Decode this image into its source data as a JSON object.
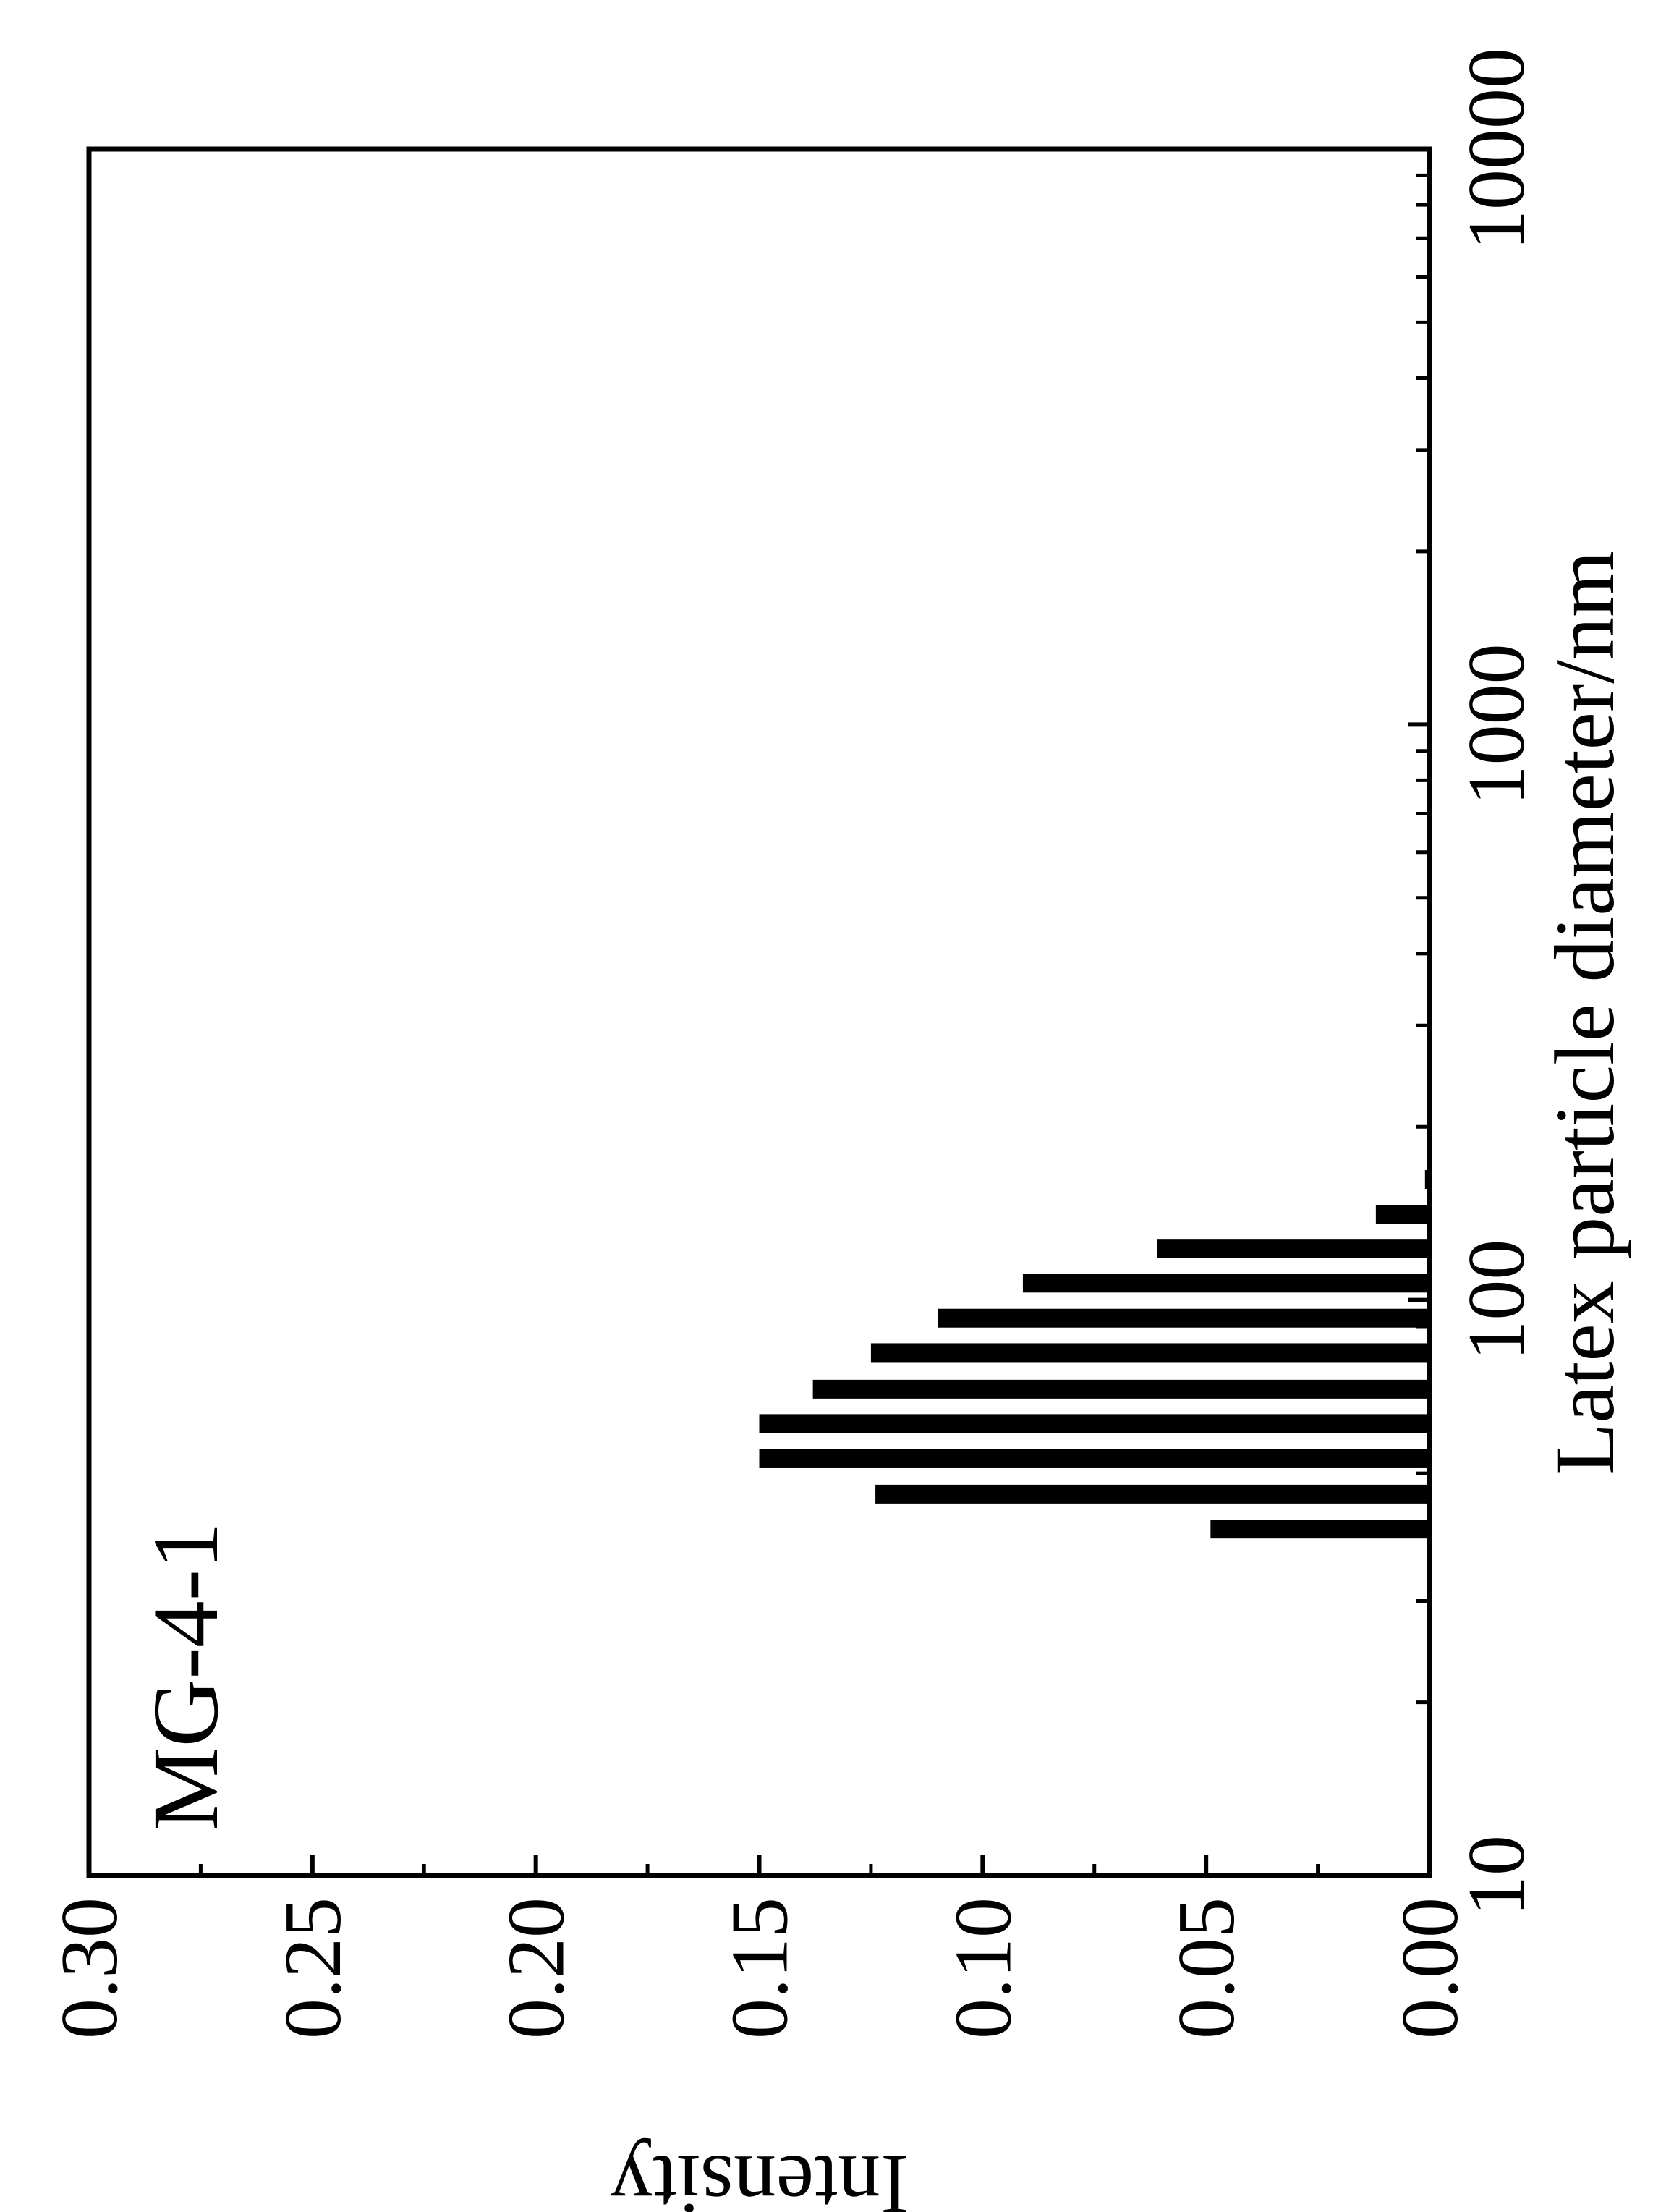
{
  "chart_data": {
    "type": "bar",
    "orientation": "rotated-90-clockwise",
    "title": "",
    "annotation": "MG-4-1",
    "xlabel": "Latex particle diameter/nm",
    "ylabel": "Intensity",
    "x_scale": "log",
    "xlim": [
      10,
      10000
    ],
    "ylim": [
      0,
      0.3
    ],
    "x_ticks": [
      {
        "value": 10,
        "label": "10"
      },
      {
        "value": 100,
        "label": "100"
      },
      {
        "value": 1000,
        "label": "1000"
      },
      {
        "value": 10000,
        "label": "10000"
      }
    ],
    "y_ticks": [
      {
        "value": 0.0,
        "label": "0.00"
      },
      {
        "value": 0.05,
        "label": "0.05"
      },
      {
        "value": 0.1,
        "label": "0.10"
      },
      {
        "value": 0.15,
        "label": "0.15"
      },
      {
        "value": 0.2,
        "label": "0.20"
      },
      {
        "value": 0.25,
        "label": "0.25"
      },
      {
        "value": 0.3,
        "label": "0.30"
      }
    ],
    "series": [
      {
        "x": [
          40,
          46,
          53,
          61,
          70,
          81,
          93,
          107,
          123,
          141,
          162
        ],
        "values": [
          0.049,
          0.124,
          0.15,
          0.15,
          0.138,
          0.125,
          0.11,
          0.091,
          0.061,
          0.012,
          0.001
        ]
      }
    ],
    "grid": false,
    "legend": "none",
    "bar_color": "#000000"
  }
}
